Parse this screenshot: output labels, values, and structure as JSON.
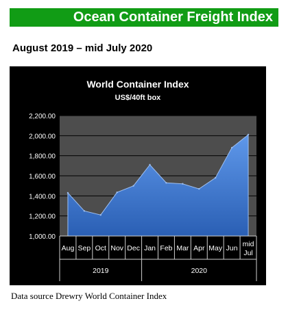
{
  "header": {
    "banner": "Ocean Container Freight Index",
    "subtitle": "August 2019 – mid July 2020"
  },
  "footer": {
    "source": "Data source Drewry World Container Index"
  },
  "colors": {
    "banner_bg": "#119c15",
    "chart_bg": "#000000",
    "plot_bg": "#4d4d4d",
    "area_fill": "#3d78d4",
    "area_edge": "#9ec0f2"
  },
  "chart_data": {
    "type": "area",
    "title": "World Container Index",
    "subtitle": "US$/40ft box",
    "categories": [
      "Aug",
      "Sep",
      "Oct",
      "Nov",
      "Dec",
      "Jan",
      "Feb",
      "Mar",
      "Apr",
      "May",
      "Jun",
      "mid Jul"
    ],
    "x_groups": [
      {
        "label": "2019",
        "span": 5
      },
      {
        "label": "2020",
        "span": 7
      }
    ],
    "values": [
      1430,
      1250,
      1210,
      1435,
      1500,
      1710,
      1530,
      1520,
      1470,
      1580,
      1880,
      2010
    ],
    "ylim": [
      1000,
      2200
    ],
    "yticks": [
      "1,000.00",
      "1,200.00",
      "1,400.00",
      "1,600.00",
      "1,800.00",
      "2,000.00",
      "2,200.00"
    ],
    "ytick_values": [
      1000,
      1200,
      1400,
      1600,
      1800,
      2000,
      2200
    ],
    "grid": true,
    "legend": "none"
  }
}
